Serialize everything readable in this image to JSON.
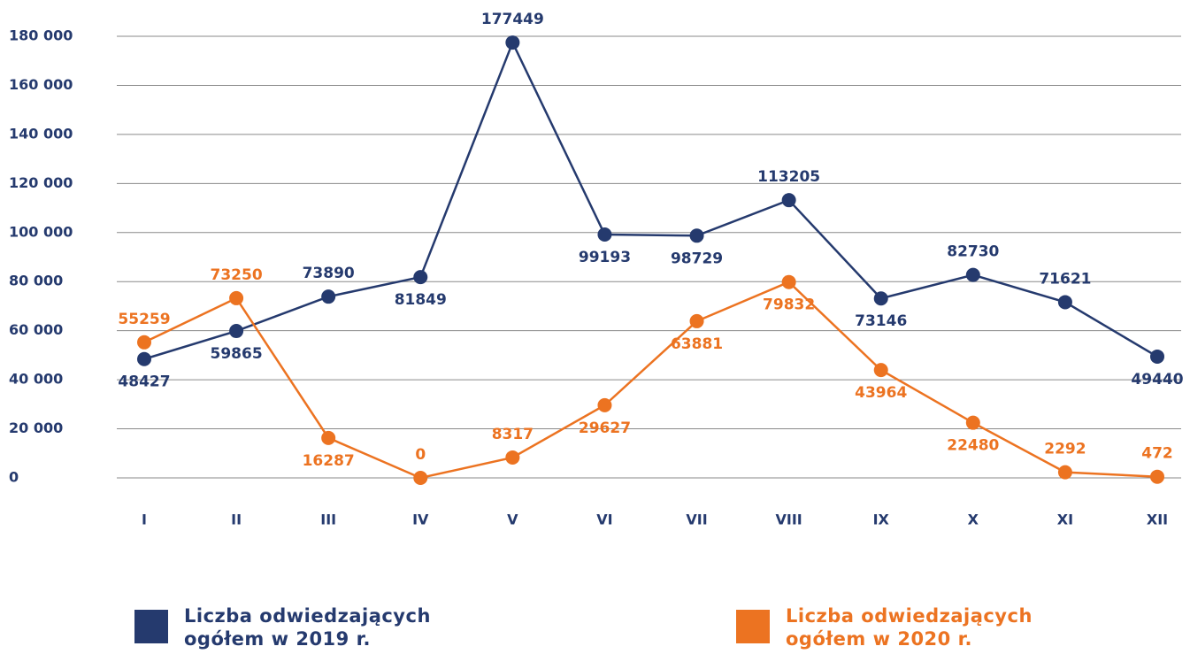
{
  "chart_data": {
    "type": "line",
    "categories": [
      "I",
      "II",
      "III",
      "IV",
      "V",
      "VI",
      "VII",
      "VIII",
      "IX",
      "X",
      "XI",
      "XII"
    ],
    "series": [
      {
        "name": "Liczba odwiedzających ogółem w 2019 r.",
        "color": "#253a6e",
        "values": [
          48427,
          59865,
          73890,
          81849,
          177449,
          99193,
          98729,
          113205,
          73146,
          82730,
          71621,
          49440
        ]
      },
      {
        "name": "Liczba odwiedzających ogółem w 2020 r.",
        "color": "#ec7321",
        "values": [
          55259,
          73250,
          16287,
          0,
          8317,
          29627,
          63881,
          79832,
          43964,
          22480,
          2292,
          472
        ]
      }
    ],
    "ylim": [
      0,
      180000
    ],
    "yticks": [
      0,
      {
        "value": 20000,
        "label": "20 000"
      },
      {
        "value": 40000,
        "label": "40 000"
      },
      {
        "value": 60000,
        "label": "60 000"
      },
      {
        "value": 80000,
        "label": "80 000"
      },
      {
        "value": 100000,
        "label": "100 000"
      },
      {
        "value": 120000,
        "label": "120 000"
      },
      {
        "value": 140000,
        "label": "140 000"
      },
      {
        "value": 160000,
        "label": "160 000"
      },
      {
        "value": 180000,
        "label": "180 000"
      }
    ],
    "grid": true
  }
}
